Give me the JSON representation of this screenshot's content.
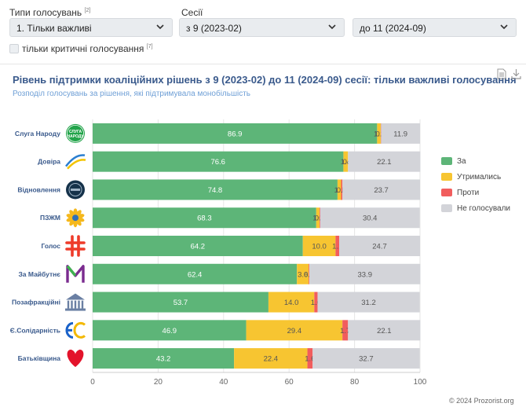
{
  "filters": {
    "types_label": "Типи голосувань",
    "types_sup": "[2]",
    "types_value": "1. Тільки важливі",
    "sessions_label": "Сесії",
    "from_value": "з 9 (2023-02)",
    "to_value": "до 11 (2024-09)",
    "critical_label": "тільки критичні голосування",
    "critical_sup": "[7]"
  },
  "header": {
    "title": "Рівень підтримки коаліційних рішень з 9 (2023-02) до 11 (2024-09) сесії: тільки важливі голосування",
    "subtitle": "Розподіл голосувань за рішення, які підтримувала монобільшість"
  },
  "colors": {
    "za": "#5db578",
    "utrym": "#f7c531",
    "proty": "#f15d5d",
    "ne": "#d3d4d9",
    "title": "#3a5a8c"
  },
  "chart_data": {
    "type": "bar",
    "orientation": "horizontal",
    "stacked": true,
    "categories": [
      "Слуга Народу",
      "Довіра",
      "Відновлення",
      "ПЗЖМ",
      "Голос",
      "За Майбутнє",
      "Позафракційні",
      "Є.Солідарність",
      "Батьківщина"
    ],
    "series": [
      {
        "name": "За",
        "values": [
          86.9,
          76.6,
          74.8,
          68.3,
          64.2,
          62.4,
          53.7,
          46.9,
          43.2
        ]
      },
      {
        "name": "Утримались",
        "values": [
          1.1,
          1.4,
          1.1,
          1.0,
          10.0,
          3.6,
          14.0,
          29.4,
          22.4
        ]
      },
      {
        "name": "Проти",
        "values": [
          0.1,
          0.0,
          0.4,
          0.2,
          1.1,
          0.2,
          1.0,
          1.7,
          1.6
        ]
      },
      {
        "name": "Не голосували",
        "values": [
          11.9,
          22.1,
          23.7,
          30.4,
          24.7,
          33.9,
          31.2,
          22.1,
          32.7
        ]
      }
    ],
    "labels": [
      [
        "86.9",
        "1.1",
        "0.1",
        "11.9"
      ],
      [
        "76.6",
        "1.4",
        "0.0",
        "22.1"
      ],
      [
        "74.8",
        "1.1",
        "0.4",
        "23.7"
      ],
      [
        "68.3",
        "1.0",
        "0.2",
        "30.4"
      ],
      [
        "64.2",
        "10.0",
        "1.1",
        "24.7"
      ],
      [
        "62.4",
        "3.6",
        "0.2",
        "33.9"
      ],
      [
        "53.7",
        "14.0",
        "1.0",
        "31.2"
      ],
      [
        "46.9",
        "29.4",
        "1.7",
        "22.1"
      ],
      [
        "43.2",
        "22.4",
        "1.6",
        "32.7"
      ]
    ],
    "xlim": [
      0,
      100
    ],
    "xticks": [
      "0",
      "20",
      "40",
      "60",
      "80",
      "100"
    ],
    "legend_position": "right",
    "grid": true
  },
  "logos": [
    {
      "icon": "sluha-narodu-logo",
      "text": "СЛУГА НАРОДУ"
    },
    {
      "icon": "dovira-logo"
    },
    {
      "icon": "vidnovlennia-logo"
    },
    {
      "icon": "pzzhm-logo"
    },
    {
      "icon": "holos-logo"
    },
    {
      "icon": "za-maibutnie-logo"
    },
    {
      "icon": "pozafraktsiini-logo"
    },
    {
      "icon": "yes-logo"
    },
    {
      "icon": "batkivshchyna-logo"
    }
  ],
  "footer": {
    "copyright": "© 2024 Prozorist.org"
  }
}
